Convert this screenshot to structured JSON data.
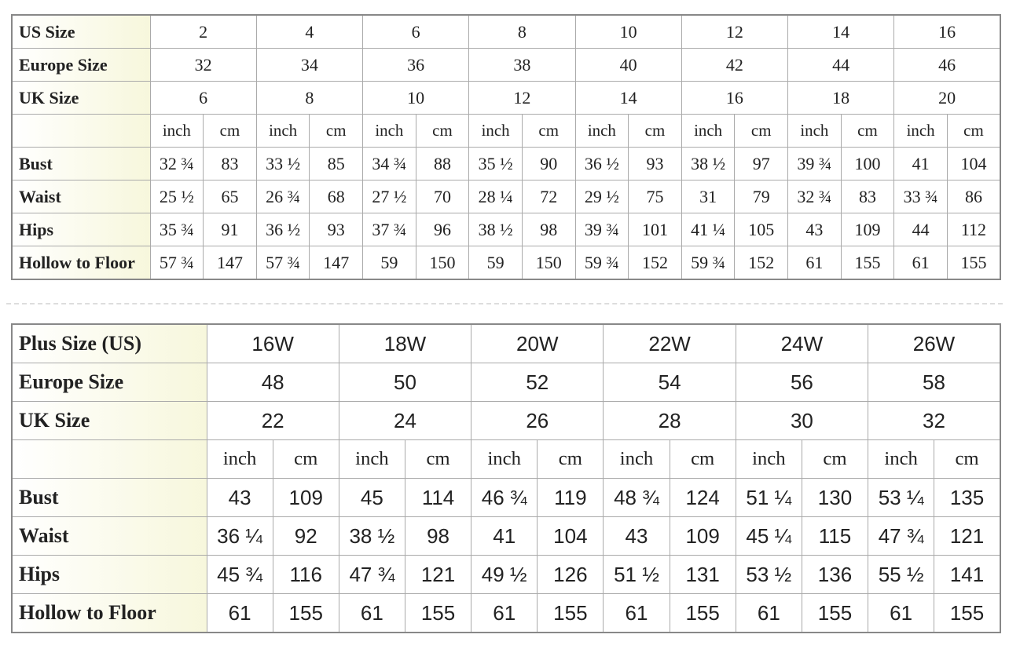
{
  "tables": [
    {
      "header_rows": [
        {
          "label": "US Size",
          "values": [
            "2",
            "4",
            "6",
            "8",
            "10",
            "12",
            "14",
            "16"
          ]
        },
        {
          "label": "Europe Size",
          "values": [
            "32",
            "34",
            "36",
            "38",
            "40",
            "42",
            "44",
            "46"
          ]
        },
        {
          "label": "UK Size",
          "values": [
            "6",
            "8",
            "10",
            "12",
            "14",
            "16",
            "18",
            "20"
          ]
        }
      ],
      "units": [
        "inch",
        "cm"
      ],
      "rows": [
        {
          "label": "Bust",
          "values": [
            "32 ¾",
            "83",
            "33 ½",
            "85",
            "34 ¾",
            "88",
            "35 ½",
            "90",
            "36 ½",
            "93",
            "38 ½",
            "97",
            "39 ¾",
            "100",
            "41",
            "104"
          ]
        },
        {
          "label": "Waist",
          "values": [
            "25 ½",
            "65",
            "26 ¾",
            "68",
            "27 ½",
            "70",
            "28 ¼",
            "72",
            "29 ½",
            "75",
            "31",
            "79",
            "32 ¾",
            "83",
            "33 ¾",
            "86"
          ]
        },
        {
          "label": "Hips",
          "values": [
            "35 ¾",
            "91",
            "36 ½",
            "93",
            "37 ¾",
            "96",
            "38 ½",
            "98",
            "39 ¾",
            "101",
            "41 ¼",
            "105",
            "43",
            "109",
            "44",
            "112"
          ]
        },
        {
          "label": "Hollow to Floor",
          "values": [
            "57 ¾",
            "147",
            "57 ¾",
            "147",
            "59",
            "150",
            "59",
            "150",
            "59 ¾",
            "152",
            "59 ¾",
            "152",
            "61",
            "155",
            "61",
            "155"
          ]
        }
      ]
    },
    {
      "header_rows": [
        {
          "label": "Plus Size (US)",
          "values": [
            "16W",
            "18W",
            "20W",
            "22W",
            "24W",
            "26W"
          ]
        },
        {
          "label": "Europe Size",
          "values": [
            "48",
            "50",
            "52",
            "54",
            "56",
            "58"
          ]
        },
        {
          "label": "UK Size",
          "values": [
            "22",
            "24",
            "26",
            "28",
            "30",
            "32"
          ]
        }
      ],
      "units": [
        "inch",
        "cm"
      ],
      "rows": [
        {
          "label": "Bust",
          "values": [
            "43",
            "109",
            "45",
            "114",
            "46 ¾",
            "119",
            "48 ¾",
            "124",
            "51 ¼",
            "130",
            "53 ¼",
            "135"
          ]
        },
        {
          "label": "Waist",
          "values": [
            "36 ¼",
            "92",
            "38 ½",
            "98",
            "41",
            "104",
            "43",
            "109",
            "45 ¼",
            "115",
            "47 ¾",
            "121"
          ]
        },
        {
          "label": "Hips",
          "values": [
            "45 ¾",
            "116",
            "47 ¾",
            "121",
            "49 ½",
            "126",
            "51 ½",
            "131",
            "53 ½",
            "136",
            "55 ½",
            "141"
          ]
        },
        {
          "label": "Hollow to Floor",
          "values": [
            "61",
            "155",
            "61",
            "155",
            "61",
            "155",
            "61",
            "155",
            "61",
            "155",
            "61",
            "155"
          ]
        }
      ]
    }
  ]
}
